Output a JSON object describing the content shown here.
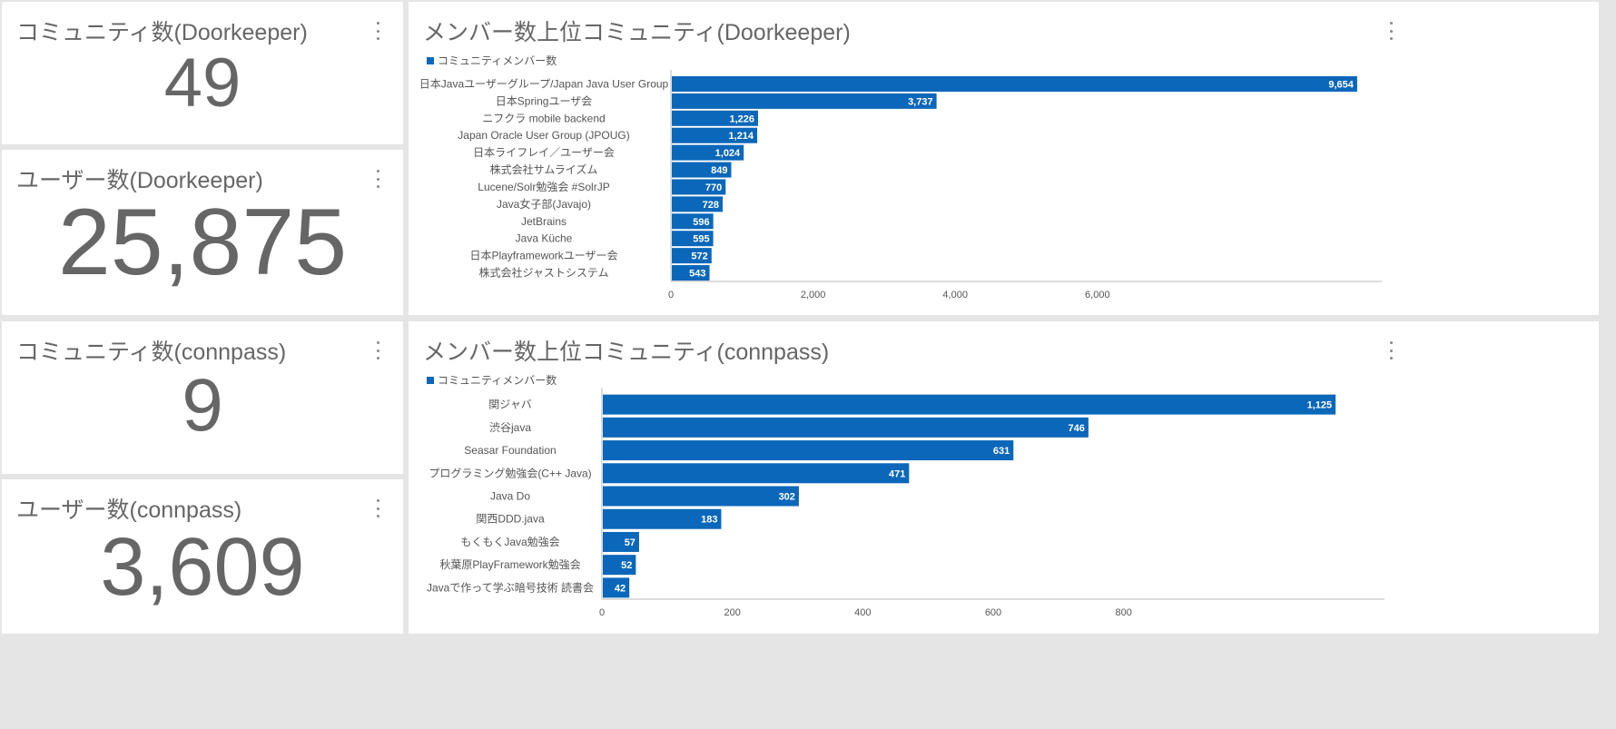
{
  "colors": {
    "bar": "#0b67b9",
    "axis": "#bbbbbb",
    "text": "#666666",
    "label": "#555555"
  },
  "kpis": {
    "dk_communities": {
      "title": "コミュニティ数(Doorkeeper)",
      "value": "49"
    },
    "dk_users": {
      "title": "ユーザー数(Doorkeeper)",
      "value": "25,875"
    },
    "cp_communities": {
      "title": "コミュニティ数(connpass)",
      "value": "9"
    },
    "cp_users": {
      "title": "ユーザー数(connpass)",
      "value": "3,609"
    }
  },
  "chart_data": [
    {
      "type": "bar",
      "orientation": "horizontal",
      "title": "メンバー数上位コミュニティ(Doorkeeper)",
      "legend": [
        "コミュニティメンバー数"
      ],
      "legend_position": "top-left",
      "categories": [
        "日本Javaユーザーグループ/Japan Java User Group",
        "日本Springユーザ会",
        "ニフクラ mobile backend",
        "Japan Oracle User Group (JPOUG)",
        "日本ライフレイ／ユーザー会",
        "株式会社サムライズム",
        "Lucene/Solr勉強会 #SolrJP",
        "Java女子部(Javajo)",
        "JetBrains",
        "Java Küche",
        "日本Playframeworkユーザー会",
        "株式会社ジャストシステム"
      ],
      "values": [
        9654,
        3737,
        1226,
        1214,
        1024,
        849,
        770,
        728,
        596,
        595,
        572,
        543
      ],
      "value_labels": [
        "9,654",
        "3,737",
        "1,226",
        "1,214",
        "1,024",
        "849",
        "770",
        "728",
        "596",
        "595",
        "572",
        "543"
      ],
      "xlim": [
        0,
        10000
      ],
      "xticks": [
        0,
        2000,
        4000,
        6000
      ],
      "xtick_labels": [
        "0",
        "2,000",
        "4,000",
        "6,000"
      ],
      "grid": false
    },
    {
      "type": "bar",
      "orientation": "horizontal",
      "title": "メンバー数上位コミュニティ(connpass)",
      "legend": [
        "コミュニティメンバー数"
      ],
      "legend_position": "top-left",
      "categories": [
        "関ジャバ",
        "渋谷java",
        "Seasar Foundation",
        "プログラミング勉強会(C++ Java)",
        "Java Do",
        "関西DDD.java",
        "もくもくJava勉強会",
        "秋葉原PlayFramework勉強会",
        "Javaで作って学ぶ暗号技術 読書会"
      ],
      "values": [
        1125,
        746,
        631,
        471,
        302,
        183,
        57,
        52,
        42
      ],
      "value_labels": [
        "1,125",
        "746",
        "631",
        "471",
        "302",
        "183",
        "57",
        "52",
        "42"
      ],
      "xlim": [
        0,
        1200
      ],
      "xticks": [
        0,
        200,
        400,
        600,
        800
      ],
      "xtick_labels": [
        "0",
        "200",
        "400",
        "600",
        "800"
      ],
      "grid": false
    }
  ]
}
